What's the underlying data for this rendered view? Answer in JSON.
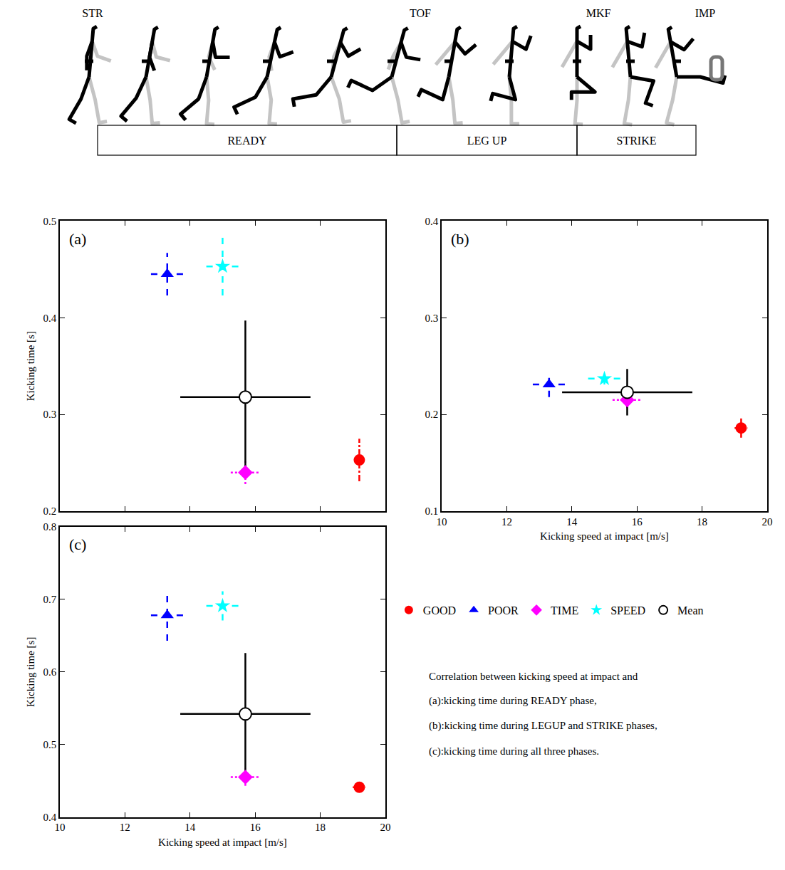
{
  "diagram": {
    "events": [
      "STR",
      "TOF",
      "MKF",
      "IMP"
    ],
    "phases": [
      "READY",
      "LEG UP",
      "STRIKE"
    ]
  },
  "caption": [
    "Correlation between kicking speed at impact and",
    "(a):kicking time during READY phase,",
    "(b):kicking time during LEGUP and STRIKE phases,",
    "(c):kicking time during all three phases."
  ],
  "chart_data": [
    {
      "type": "scatter",
      "label": "(a)",
      "y_label": "Kicking time [s]",
      "tick_labels": "y",
      "grid": false,
      "xlim": [
        10,
        20
      ],
      "xticks": [
        10,
        12,
        14,
        16,
        18,
        20
      ],
      "ylim": [
        0.2,
        0.5
      ],
      "yticks": [
        0.2,
        0.3,
        0.4,
        0.5
      ],
      "series": [
        {
          "name": "GOOD",
          "color": "#ff0000",
          "marker": "circle",
          "line_style": "dashdot",
          "x": [
            19.2
          ],
          "values": [
            0.253
          ],
          "error_x": [
            0.15
          ],
          "error_y": [
            0.022
          ]
        },
        {
          "name": "POOR",
          "color": "#0000ff",
          "marker": "triangle-up",
          "line_style": "dash",
          "x": [
            13.3
          ],
          "values": [
            0.445
          ],
          "error_x": [
            0.5
          ],
          "error_y": [
            0.022
          ]
        },
        {
          "name": "TIME",
          "color": "#ff00ff",
          "marker": "diamond",
          "line_style": "dot",
          "x": [
            15.7
          ],
          "values": [
            0.24
          ],
          "error_x": [
            0.45
          ],
          "error_y": [
            0.012
          ]
        },
        {
          "name": "SPEED",
          "color": "#00ffff",
          "marker": "star",
          "line_style": "dash",
          "x": [
            15.0
          ],
          "values": [
            0.453
          ],
          "error_x": [
            0.5
          ],
          "error_y": [
            0.03
          ]
        },
        {
          "name": "Mean",
          "color": "#000000",
          "marker": "circle-open",
          "line_style": "solid",
          "x": [
            15.7
          ],
          "values": [
            0.318
          ],
          "error_x": [
            2.0
          ],
          "error_y": [
            0.079
          ]
        }
      ]
    },
    {
      "type": "scatter",
      "label": "(b)",
      "x_label": "Kicking speed at impact [m/s]",
      "grid": false,
      "legend": "below",
      "xlim": [
        10,
        20
      ],
      "xticks": [
        10,
        12,
        14,
        16,
        18,
        20
      ],
      "ylim": [
        0.1,
        0.4
      ],
      "yticks": [
        0.1,
        0.2,
        0.3,
        0.4
      ],
      "series": [
        {
          "name": "GOOD",
          "color": "#ff0000",
          "marker": "circle",
          "line_style": "dashdot",
          "x": [
            19.2
          ],
          "values": [
            0.186
          ],
          "error_x": [
            0.2
          ],
          "error_y": [
            0.01
          ]
        },
        {
          "name": "POOR",
          "color": "#0000ff",
          "marker": "triangle-up",
          "line_style": "dash",
          "x": [
            13.3
          ],
          "values": [
            0.231
          ],
          "error_x": [
            0.5
          ],
          "error_y": [
            0.013
          ]
        },
        {
          "name": "TIME",
          "color": "#ff00ff",
          "marker": "diamond",
          "line_style": "dot",
          "x": [
            15.7
          ],
          "values": [
            0.215
          ],
          "error_x": [
            0.45
          ],
          "error_y": [
            0.008
          ]
        },
        {
          "name": "SPEED",
          "color": "#00ffff",
          "marker": "star",
          "line_style": "dash",
          "x": [
            15.0
          ],
          "values": [
            0.237
          ],
          "error_x": [
            0.5
          ],
          "error_y": [
            0.006
          ]
        },
        {
          "name": "Mean",
          "color": "#000000",
          "marker": "circle-open",
          "line_style": "solid",
          "x": [
            15.7
          ],
          "values": [
            0.223
          ],
          "error_x": [
            2.0
          ],
          "error_y": [
            0.024
          ]
        }
      ]
    },
    {
      "type": "scatter",
      "label": "(c)",
      "x_label": "Kicking speed at impact [m/s]",
      "y_label": "Kicking time [s]",
      "grid": false,
      "xlim": [
        10,
        20
      ],
      "xticks": [
        10,
        12,
        14,
        16,
        18,
        20
      ],
      "ylim": [
        0.4,
        0.8
      ],
      "yticks": [
        0.4,
        0.5,
        0.6,
        0.7,
        0.8
      ],
      "series": [
        {
          "name": "GOOD",
          "color": "#ff0000",
          "marker": "circle",
          "line_style": "dashdot",
          "x": [
            19.2
          ],
          "values": [
            0.441
          ],
          "error_x": [
            0.2
          ],
          "error_y": [
            0.005
          ]
        },
        {
          "name": "POOR",
          "color": "#0000ff",
          "marker": "triangle-up",
          "line_style": "dash",
          "x": [
            13.3
          ],
          "values": [
            0.678
          ],
          "error_x": [
            0.5
          ],
          "error_y": [
            0.035
          ]
        },
        {
          "name": "TIME",
          "color": "#ff00ff",
          "marker": "diamond",
          "line_style": "dot",
          "x": [
            15.7
          ],
          "values": [
            0.455
          ],
          "error_x": [
            0.45
          ],
          "error_y": [
            0.012
          ]
        },
        {
          "name": "SPEED",
          "color": "#00ffff",
          "marker": "star",
          "line_style": "dash",
          "x": [
            15.0
          ],
          "values": [
            0.691
          ],
          "error_x": [
            0.5
          ],
          "error_y": [
            0.02
          ]
        },
        {
          "name": "Mean",
          "color": "#000000",
          "marker": "circle-open",
          "line_style": "solid",
          "x": [
            15.7
          ],
          "values": [
            0.542
          ],
          "error_x": [
            2.0
          ],
          "error_y": [
            0.084
          ]
        }
      ]
    }
  ]
}
